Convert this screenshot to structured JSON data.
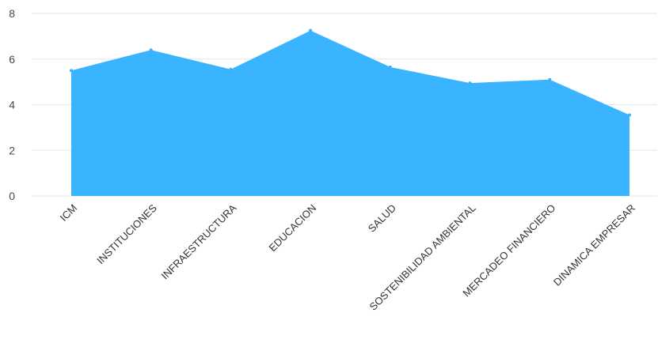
{
  "chart_data": {
    "type": "area",
    "categories": [
      "ICM",
      "INSTITUCIONES",
      "INFRAESTRUCTURA",
      "EDUCACION",
      "SALUD",
      "SOSTENIBILIDAD AMBIENTAL",
      "MERCADEO FINANCIERO",
      "DINAMICA EMPRESAR"
    ],
    "series": [
      {
        "values": [
          5.5,
          6.4,
          5.55,
          7.25,
          5.65,
          4.95,
          5.1,
          3.55
        ],
        "color": "#3bb4ff"
      }
    ],
    "y_ticks": [
      "0",
      "2",
      "4",
      "6",
      "8"
    ],
    "ylim": [
      0,
      8
    ],
    "grid": true,
    "title": "",
    "xlabel": "",
    "ylabel": ""
  }
}
